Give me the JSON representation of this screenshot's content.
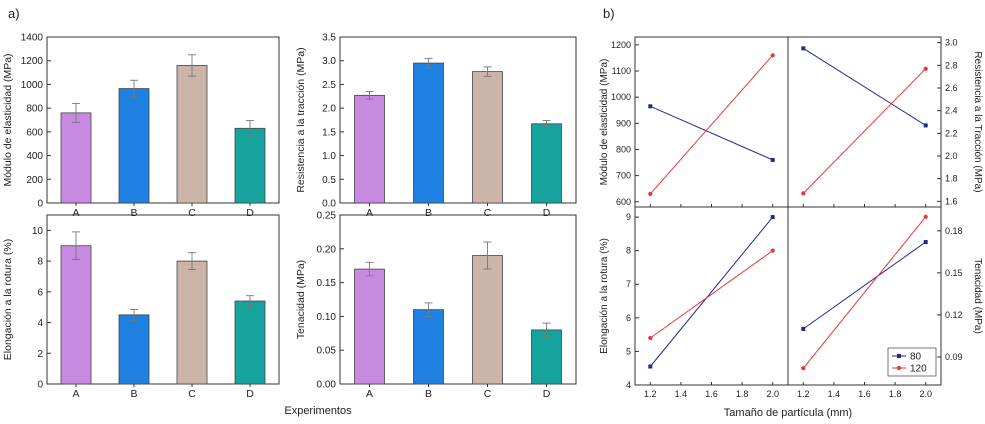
{
  "panel_labels": {
    "a": "a)",
    "b": "b)"
  },
  "shared_labels": {
    "experiments_xlabel": "Experimentos",
    "particle_xlabel": "Tamaño de partícula (mm)"
  },
  "colors": {
    "A": "#c88ae0",
    "B": "#1e80e0",
    "C": "#cdb4a8",
    "D": "#16a39e",
    "series_80": "#1f2a8f",
    "series_120": "#ee3535",
    "axis": "#333333"
  },
  "chart_data": [
    {
      "id": "a1",
      "type": "bar",
      "categories": [
        "A",
        "B",
        "C",
        "D"
      ],
      "values": [
        760,
        965,
        1160,
        630
      ],
      "errors": [
        80,
        70,
        90,
        65
      ],
      "ylabel": "Módulo de elasticidad (MPa)",
      "xlabel": "",
      "ylim": [
        0,
        1400
      ],
      "yticks": [
        0,
        200,
        400,
        600,
        800,
        1000,
        1200,
        1400
      ],
      "ytick_labels": [
        "0",
        "200",
        "400",
        "600",
        "800",
        "1000",
        "1200",
        "1400"
      ]
    },
    {
      "id": "a2",
      "type": "bar",
      "categories": [
        "A",
        "B",
        "C",
        "D"
      ],
      "values": [
        2.27,
        2.95,
        2.77,
        1.67
      ],
      "errors": [
        0.08,
        0.1,
        0.1,
        0.07
      ],
      "ylabel": "Resistencia a la tracción (MPa)",
      "xlabel": "",
      "ylim": [
        0,
        3.5
      ],
      "yticks": [
        0,
        0.5,
        1,
        1.5,
        2,
        2.5,
        3,
        3.5
      ],
      "ytick_labels": [
        "0.0",
        "0.5",
        "1.0",
        "1.5",
        "2.0",
        "2.5",
        "3.0",
        "3.5"
      ]
    },
    {
      "id": "a3",
      "type": "bar",
      "categories": [
        "A",
        "B",
        "C",
        "D"
      ],
      "values": [
        9.0,
        4.5,
        8.0,
        5.4
      ],
      "errors": [
        0.9,
        0.35,
        0.55,
        0.35
      ],
      "ylabel": "Elongación a la rotura (%)",
      "xlabel": "",
      "ylim": [
        0,
        11
      ],
      "yticks": [
        0,
        2,
        4,
        6,
        8,
        10
      ],
      "ytick_labels": [
        "0",
        "2",
        "4",
        "6",
        "8",
        "10"
      ]
    },
    {
      "id": "a4",
      "type": "bar",
      "categories": [
        "A",
        "B",
        "C",
        "D"
      ],
      "values": [
        0.17,
        0.11,
        0.19,
        0.08
      ],
      "errors": [
        0.01,
        0.01,
        0.02,
        0.01
      ],
      "ylabel": "Tenacidad (MPa)",
      "xlabel": "",
      "ylim": [
        0,
        0.25
      ],
      "yticks": [
        0,
        0.05,
        0.1,
        0.15,
        0.2,
        0.25
      ],
      "ytick_labels": [
        "0.00",
        "0.05",
        "0.10",
        "0.15",
        "0.20",
        "0.25"
      ]
    },
    {
      "id": "b1",
      "type": "line",
      "x": [
        1.2,
        2.0
      ],
      "series": [
        {
          "name": "80",
          "values": [
            965,
            760
          ]
        },
        {
          "name": "120",
          "values": [
            630,
            1160
          ]
        }
      ],
      "ylabel": "Módulo de elasticidad (MPa)",
      "xlim": [
        1.1,
        2.1
      ],
      "ylim": [
        580,
        1230
      ],
      "yticks": [
        600,
        700,
        800,
        900,
        1000,
        1100,
        1200
      ],
      "ytick_labels": [
        "600",
        "700",
        "800",
        "900",
        "1000",
        "1100",
        "1200"
      ],
      "xticks": [
        1.2,
        1.4,
        1.6,
        1.8,
        2.0
      ],
      "xtick_labels": []
    },
    {
      "id": "b2",
      "type": "line",
      "x": [
        1.2,
        2.0
      ],
      "series": [
        {
          "name": "80",
          "values": [
            2.95,
            2.27
          ]
        },
        {
          "name": "120",
          "values": [
            1.67,
            2.77
          ]
        }
      ],
      "ylabel": "Resistencia a la Tracción (MPa)",
      "xlim": [
        1.1,
        2.1
      ],
      "ylim": [
        1.55,
        3.05
      ],
      "yticks": [
        1.6,
        1.8,
        2.0,
        2.2,
        2.4,
        2.6,
        2.8,
        3.0
      ],
      "ytick_labels": [
        "1.6",
        "1.8",
        "2.0",
        "2.2",
        "2.4",
        "2.6",
        "2.8",
        "3.0"
      ],
      "xticks": [
        1.2,
        1.4,
        1.6,
        1.8,
        2.0
      ],
      "xtick_labels": []
    },
    {
      "id": "b3",
      "type": "line",
      "x": [
        1.2,
        2.0
      ],
      "series": [
        {
          "name": "80",
          "values": [
            4.55,
            9.0
          ]
        },
        {
          "name": "120",
          "values": [
            5.4,
            8.0
          ]
        }
      ],
      "ylabel": "Elongación a la rotura (%)",
      "xlim": [
        1.1,
        2.1
      ],
      "ylim": [
        4.0,
        9.3
      ],
      "yticks": [
        4,
        5,
        6,
        7,
        8,
        9
      ],
      "ytick_labels": [
        "4",
        "5",
        "6",
        "7",
        "8",
        "9"
      ],
      "xticks": [
        1.2,
        1.4,
        1.6,
        1.8,
        2.0
      ],
      "xtick_labels": [
        "1.2",
        "1.4",
        "1.6",
        "1.8",
        "2.0"
      ]
    },
    {
      "id": "b4",
      "type": "line",
      "x": [
        1.2,
        2.0
      ],
      "series": [
        {
          "name": "80",
          "values": [
            0.11,
            0.172
          ]
        },
        {
          "name": "120",
          "values": [
            0.082,
            0.19
          ]
        }
      ],
      "ylabel": "Tenacidad (MPa)",
      "xlim": [
        1.1,
        2.1
      ],
      "ylim": [
        0.07,
        0.197
      ],
      "yticks": [
        0.09,
        0.12,
        0.15,
        0.18
      ],
      "ytick_labels": [
        "0.09",
        "0.12",
        "0.15",
        "0.18"
      ],
      "xticks": [
        1.2,
        1.4,
        1.6,
        1.8,
        2.0
      ],
      "xtick_labels": [
        "1.2",
        "1.4",
        "1.6",
        "1.8",
        "2.0"
      ],
      "legend": {
        "position": "bottom-left",
        "entries": [
          "80",
          "120"
        ]
      }
    }
  ]
}
